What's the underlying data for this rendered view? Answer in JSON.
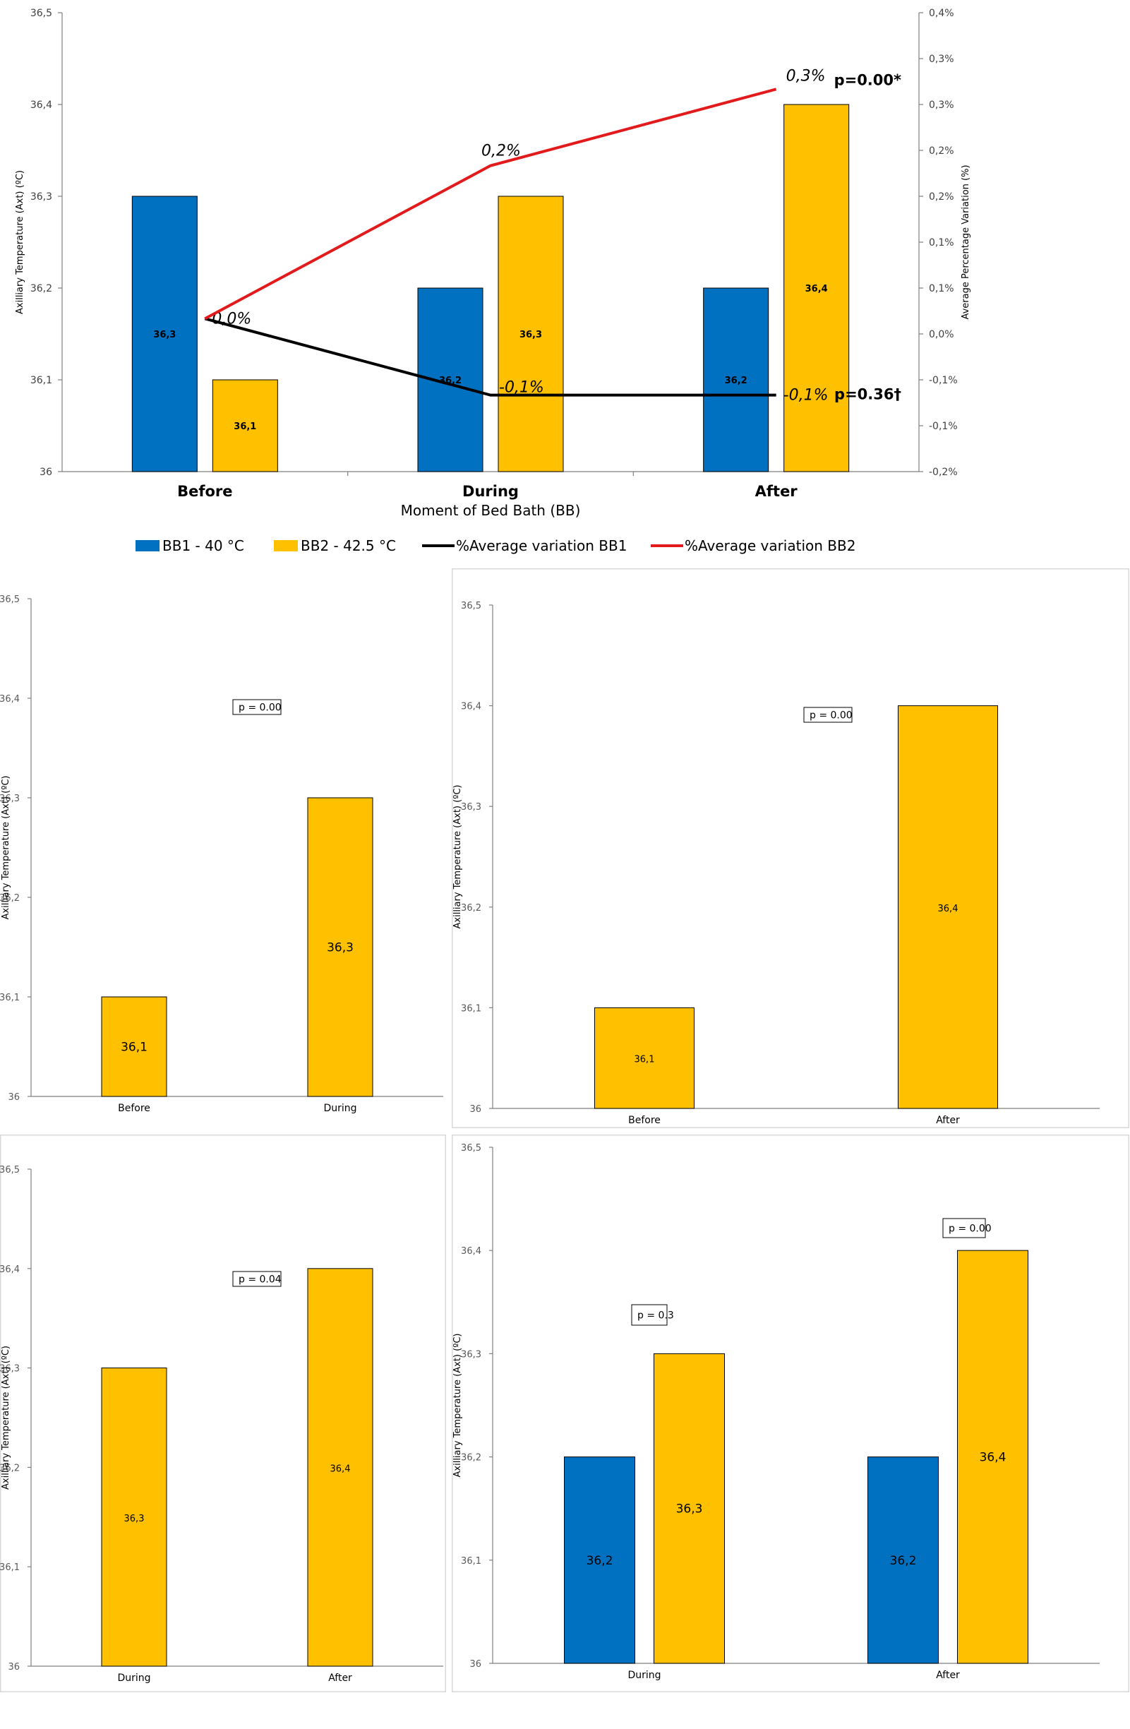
{
  "colors": {
    "bb1": "#0070c0",
    "bb2": "#ffc000",
    "line_bb1": "#000000",
    "line_bb2": "#e31a1c"
  },
  "chart_data": [
    {
      "type": "bar",
      "categories": [
        "Before",
        "During",
        "After"
      ],
      "series": [
        {
          "name": "BB1 - 40 °C",
          "values": [
            36.3,
            36.2,
            36.2
          ],
          "labels": [
            "36,3",
            "36,2",
            "36,2"
          ]
        },
        {
          "name": "BB2 - 42.5 °C",
          "values": [
            36.1,
            36.3,
            36.4
          ],
          "labels": [
            "36,1",
            "36,3",
            "36,4"
          ]
        }
      ],
      "line_series": [
        {
          "name": "%Average variation BB1",
          "values": [
            0.0,
            -0.1,
            -0.1
          ],
          "labels": [
            "0,0%",
            "-0,1%",
            "-0,1%"
          ],
          "pvalue": "p=0.36†"
        },
        {
          "name": "%Average variation BB2",
          "values": [
            0.0,
            0.2,
            0.3
          ],
          "labels": [
            "",
            "0,2%",
            "0,3%"
          ],
          "pvalue": "p=0.00*"
        }
      ],
      "xlabel": "Moment of Bed Bath (BB)",
      "ylabel": "Axilliary  Temperature (Axt) (ºC)",
      "y2label": "Average Percentage Variation (%)",
      "ylim": [
        36,
        36.5
      ],
      "yticks": [
        "36",
        "36,1",
        "36,2",
        "36,3",
        "36,4",
        "36,5"
      ],
      "y2lim": [
        -0.2,
        0.4
      ],
      "y2ticks": [
        "-0,2%",
        "-0,1%",
        "-0,1%",
        "0,0%",
        "0,1%",
        "0,1%",
        "0,2%",
        "0,2%",
        "0,3%",
        "0,3%",
        "0,4%"
      ],
      "legend_position": "bottom"
    },
    {
      "type": "bar",
      "categories": [
        "Before",
        "During"
      ],
      "series": [
        {
          "name": "BB2 - 42.5 °C",
          "values": [
            36.1,
            36.3
          ],
          "labels": [
            "36,1",
            "36,3"
          ]
        }
      ],
      "ylabel": "Axilliary  Temperature (Axt) (ºC)",
      "ylim": [
        36,
        36.5
      ],
      "yticks": [
        "36",
        "36,1",
        "36,2",
        "36,3",
        "36,4",
        "36,5"
      ],
      "annotations": [
        "p = 0.00"
      ]
    },
    {
      "type": "bar",
      "categories": [
        "Before",
        "After"
      ],
      "series": [
        {
          "name": "BB2 - 42.5 °C",
          "values": [
            36.1,
            36.4
          ],
          "labels": [
            "36,1",
            "36,4"
          ]
        }
      ],
      "ylabel": "Axilliary  Temperature (Axt) (ºC)",
      "ylim": [
        36,
        36.5
      ],
      "yticks": [
        "36",
        "36,1",
        "36,2",
        "36,3",
        "36,4",
        "36,5"
      ],
      "annotations": [
        "p = 0.00"
      ]
    },
    {
      "type": "bar",
      "categories": [
        "During",
        "After"
      ],
      "series": [
        {
          "name": "BB2 - 42.5 °C",
          "values": [
            36.3,
            36.4
          ],
          "labels": [
            "36,3",
            "36,4"
          ]
        }
      ],
      "ylabel": "Axilliary  Temperature (Axt) (ºC)",
      "ylim": [
        36,
        36.5
      ],
      "yticks": [
        "36",
        "36,1",
        "36,2",
        "36,3",
        "36,4",
        "36,5"
      ],
      "annotations": [
        "p = 0.04"
      ]
    },
    {
      "type": "bar",
      "categories": [
        "During",
        "After"
      ],
      "series": [
        {
          "name": "BB1 - 40 °C",
          "values": [
            36.2,
            36.2
          ],
          "labels": [
            "36,2",
            "36,2"
          ]
        },
        {
          "name": "BB2 - 42.5 °C",
          "values": [
            36.3,
            36.4
          ],
          "labels": [
            "36,3",
            "36,4"
          ]
        }
      ],
      "ylabel": "Axilliary  Temperature (Axt) (ºC)",
      "ylim": [
        36,
        36.5
      ],
      "yticks": [
        "36",
        "36,1",
        "36,2",
        "36,3",
        "36,4",
        "36,5"
      ],
      "annotations": [
        "p = 0.3",
        "p = 0.00"
      ]
    }
  ]
}
